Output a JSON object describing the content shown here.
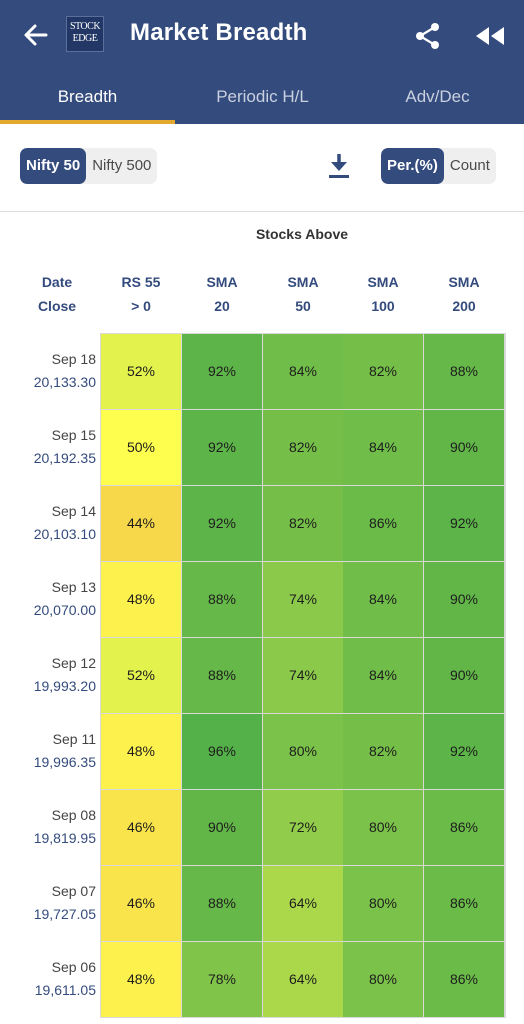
{
  "header": {
    "title": "Market Breadth",
    "logo_line1": "STOCK",
    "logo_line2": "EDGE",
    "tabs": [
      {
        "label": "Breadth",
        "active": true
      },
      {
        "label": "Periodic H/L",
        "active": false
      },
      {
        "label": "Adv/Dec",
        "active": false
      }
    ]
  },
  "controls": {
    "index_options": [
      "Nifty 50",
      "Nifty 500"
    ],
    "index_selected": "Nifty 50",
    "unit_options": [
      "Per.(%)",
      "Count"
    ],
    "unit_selected": "Per.(%)"
  },
  "table": {
    "group_label": "Stocks Above",
    "columns": [
      {
        "line1": "Date",
        "line2": "Close"
      },
      {
        "line1": "RS 55",
        "line2": "> 0"
      },
      {
        "line1": "SMA",
        "line2": "20"
      },
      {
        "line1": "SMA",
        "line2": "50"
      },
      {
        "line1": "SMA",
        "line2": "100"
      },
      {
        "line1": "SMA",
        "line2": "200"
      }
    ],
    "rows": [
      {
        "date": "Sep 18",
        "close": "20,133.30",
        "values": [
          52,
          92,
          84,
          82,
          88
        ]
      },
      {
        "date": "Sep 15",
        "close": "20,192.35",
        "values": [
          50,
          92,
          82,
          84,
          90
        ]
      },
      {
        "date": "Sep 14",
        "close": "20,103.10",
        "values": [
          44,
          92,
          82,
          86,
          92
        ]
      },
      {
        "date": "Sep 13",
        "close": "20,070.00",
        "values": [
          48,
          88,
          74,
          84,
          90
        ]
      },
      {
        "date": "Sep 12",
        "close": "19,993.20",
        "values": [
          52,
          88,
          74,
          84,
          90
        ]
      },
      {
        "date": "Sep 11",
        "close": "19,996.35",
        "values": [
          48,
          96,
          80,
          82,
          92
        ]
      },
      {
        "date": "Sep 08",
        "close": "19,819.95",
        "values": [
          46,
          90,
          72,
          80,
          86
        ]
      },
      {
        "date": "Sep 07",
        "close": "19,727.05",
        "values": [
          46,
          88,
          64,
          80,
          86
        ]
      },
      {
        "date": "Sep 06",
        "close": "19,611.05",
        "values": [
          48,
          78,
          64,
          80,
          86
        ]
      }
    ]
  },
  "colors": {
    "primary": "#344b7d",
    "tab_indicator": "#e3a92e",
    "scale_low": "#f7d84a",
    "scale_mid": "#fefe4e",
    "scale_high": "#54b048"
  }
}
